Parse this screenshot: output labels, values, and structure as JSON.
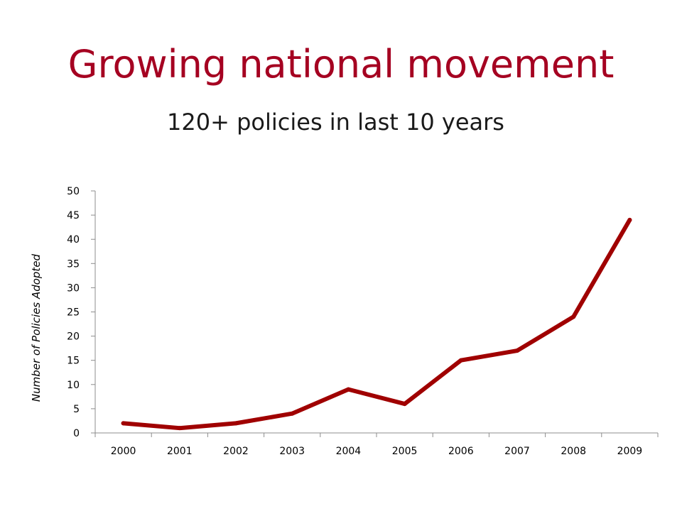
{
  "slide": {
    "title": "Growing national movement",
    "subtitle": "120+ policies in last 10 years"
  },
  "chart_data": {
    "type": "line",
    "title": "",
    "xlabel": "",
    "ylabel": "Number of Policies Adopted",
    "categories": [
      "2000",
      "2001",
      "2002",
      "2003",
      "2004",
      "2005",
      "2006",
      "2007",
      "2008",
      "2009"
    ],
    "series": [
      {
        "values": [
          2,
          1,
          2,
          4,
          9,
          6,
          15,
          17,
          24,
          44
        ],
        "color": "#a00000"
      }
    ],
    "ylim": [
      0,
      50
    ],
    "yticks": [
      0,
      5,
      10,
      15,
      20,
      25,
      30,
      35,
      40,
      45,
      50
    ],
    "grid": false,
    "legend": "none"
  }
}
